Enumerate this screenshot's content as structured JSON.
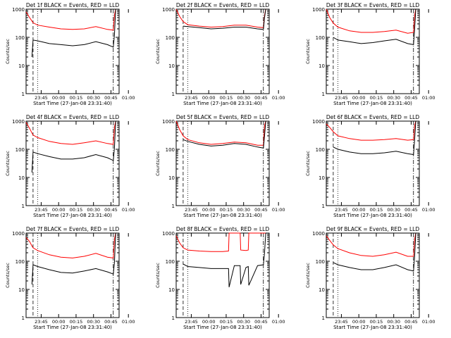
{
  "figure": {
    "xlabel": "Start Time (27-Jan-08 23:31:40)",
    "ylabel": "Counts/sec",
    "colors": {
      "events": "#000000",
      "lld": "#ff0000",
      "axes": "#000000"
    }
  },
  "chart_data": [
    {
      "type": "line",
      "title": "Det 1f BLACK = Events, RED = LLD",
      "xlabel": "Start Time (27-Jan-08 23:31:40)",
      "ylabel": "Counts/sec",
      "yscale": "log",
      "ylim": [
        1,
        1000
      ],
      "yticks": [
        1,
        10,
        100,
        1000
      ],
      "ytick_labels": [
        "1",
        "10",
        "100",
        "1000"
      ],
      "xticks": [
        "23:45",
        "00:00",
        "00:15",
        "00:30",
        "00:45",
        "01:00"
      ],
      "x": [
        0,
        3,
        5,
        6,
        10,
        20,
        30,
        40,
        50,
        60,
        70,
        75,
        76,
        77
      ],
      "series": [
        {
          "name": "LLD",
          "values": [
            800,
            500,
            380,
            330,
            270,
            230,
            200,
            190,
            200,
            240,
            190,
            180,
            600,
            1000
          ]
        },
        {
          "name": "Events",
          "values": [
            null,
            null,
            20,
            80,
            75,
            60,
            55,
            50,
            55,
            70,
            55,
            45,
            120,
            1000
          ]
        }
      ]
    },
    {
      "type": "line",
      "title": "Det 2f BLACK = Events, RED = LLD",
      "xlabel": "Start Time (27-Jan-08 23:31:40)",
      "ylabel": "Counts/sec",
      "yscale": "log",
      "ylim": [
        1,
        1000
      ],
      "yticks": [
        1,
        10,
        100,
        1000
      ],
      "ytick_labels": [
        "1",
        "10",
        "100",
        "1000"
      ],
      "xticks": [
        "23:45",
        "00:00",
        "00:15",
        "00:30",
        "00:45",
        "01:00"
      ],
      "x": [
        0,
        3,
        6,
        10,
        20,
        30,
        40,
        50,
        60,
        70,
        75,
        76,
        77,
        78
      ],
      "series": [
        {
          "name": "LLD",
          "values": [
            1000,
            550,
            360,
            280,
            250,
            230,
            240,
            270,
            270,
            230,
            220,
            600,
            1000,
            1000
          ]
        },
        {
          "name": "Events",
          "values": [
            null,
            null,
            250,
            240,
            220,
            200,
            210,
            230,
            230,
            200,
            190,
            500,
            1000,
            1000
          ]
        }
      ]
    },
    {
      "type": "line",
      "title": "Det 3f BLACK = Events, RED = LLD",
      "xlabel": "Start Time (27-Jan-08 23:31:40)",
      "ylabel": "Counts/sec",
      "yscale": "log",
      "ylim": [
        1,
        1000
      ],
      "yticks": [
        1,
        10,
        100,
        1000
      ],
      "ytick_labels": [
        "1",
        "10",
        "100",
        "1000"
      ],
      "xticks": [
        "23:45",
        "00:00",
        "00:15",
        "00:30",
        "00:45",
        "01:00"
      ],
      "x": [
        0,
        3,
        6,
        10,
        20,
        30,
        40,
        50,
        60,
        70,
        75,
        76,
        77
      ],
      "series": [
        {
          "name": "LLD",
          "values": [
            1000,
            500,
            320,
            230,
            170,
            150,
            150,
            160,
            180,
            140,
            150,
            600,
            1000
          ]
        },
        {
          "name": "Events",
          "values": [
            null,
            null,
            100,
            80,
            70,
            60,
            65,
            75,
            85,
            60,
            55,
            200,
            1000
          ]
        }
      ]
    },
    {
      "type": "line",
      "title": "Det 4f BLACK = Events, RED = LLD",
      "xlabel": "Start Time (27-Jan-08 23:31:40)",
      "ylabel": "Counts/sec",
      "yscale": "log",
      "ylim": [
        1,
        1000
      ],
      "yticks": [
        1,
        10,
        100,
        1000
      ],
      "ytick_labels": [
        "1",
        "10",
        "100",
        "1000"
      ],
      "xticks": [
        "23:45",
        "00:00",
        "00:15",
        "00:30",
        "00:45",
        "01:00"
      ],
      "x": [
        0,
        3,
        5,
        6,
        10,
        20,
        30,
        40,
        50,
        60,
        70,
        75,
        76,
        77
      ],
      "series": [
        {
          "name": "LLD",
          "values": [
            900,
            550,
            380,
            320,
            260,
            190,
            160,
            150,
            170,
            200,
            160,
            150,
            600,
            1000
          ]
        },
        {
          "name": "Events",
          "values": [
            null,
            null,
            15,
            80,
            70,
            55,
            45,
            45,
            50,
            65,
            50,
            40,
            110,
            1000
          ]
        }
      ]
    },
    {
      "type": "line",
      "title": "Det 5f BLACK = Events, RED = LLD",
      "xlabel": "Start Time (27-Jan-08 23:31:40)",
      "ylabel": "Counts/sec",
      "yscale": "log",
      "ylim": [
        1,
        1000
      ],
      "yticks": [
        1,
        10,
        100,
        1000
      ],
      "ytick_labels": [
        "1",
        "10",
        "100",
        "1000"
      ],
      "xticks": [
        "23:45",
        "00:00",
        "00:15",
        "00:30",
        "00:45",
        "01:00"
      ],
      "x": [
        0,
        3,
        6,
        10,
        20,
        30,
        40,
        50,
        60,
        70,
        75,
        76,
        77,
        78
      ],
      "series": [
        {
          "name": "LLD",
          "values": [
            1000,
            500,
            300,
            220,
            170,
            150,
            160,
            180,
            170,
            140,
            140,
            700,
            1000,
            1000
          ]
        },
        {
          "name": "Events",
          "values": [
            null,
            null,
            220,
            190,
            150,
            130,
            140,
            160,
            150,
            120,
            110,
            300,
            1000,
            1000
          ]
        }
      ]
    },
    {
      "type": "line",
      "title": "Det 6f BLACK = Events, RED = LLD",
      "xlabel": "Start Time (27-Jan-08 23:31:40)",
      "ylabel": "Counts/sec",
      "yscale": "log",
      "ylim": [
        1,
        1000
      ],
      "yticks": [
        1,
        10,
        100,
        1000
      ],
      "ytick_labels": [
        "1",
        "10",
        "100",
        "1000"
      ],
      "xticks": [
        "23:45",
        "00:00",
        "00:15",
        "00:30",
        "00:45",
        "01:00"
      ],
      "x": [
        0,
        3,
        6,
        10,
        20,
        30,
        40,
        50,
        60,
        70,
        75,
        76,
        77
      ],
      "series": [
        {
          "name": "LLD",
          "values": [
            800,
            600,
            420,
            300,
            240,
            210,
            210,
            220,
            240,
            210,
            220,
            700,
            1000
          ]
        },
        {
          "name": "Events",
          "values": [
            null,
            null,
            120,
            100,
            80,
            70,
            70,
            75,
            85,
            70,
            65,
            220,
            1000
          ]
        }
      ]
    },
    {
      "type": "line",
      "title": "Det 7f BLACK = Events, RED = LLD",
      "xlabel": "Start Time (27-Jan-08 23:31:40)",
      "ylabel": "Counts/sec",
      "yscale": "log",
      "ylim": [
        1,
        1000
      ],
      "yticks": [
        1,
        10,
        100,
        1000
      ],
      "ytick_labels": [
        "1",
        "10",
        "100",
        "1000"
      ],
      "xticks": [
        "23:45",
        "00:00",
        "00:15",
        "00:30",
        "00:45",
        "01:00"
      ],
      "x": [
        0,
        3,
        5,
        6,
        10,
        20,
        30,
        40,
        50,
        60,
        70,
        75,
        76,
        77
      ],
      "series": [
        {
          "name": "LLD",
          "values": [
            700,
            500,
            350,
            300,
            240,
            170,
            140,
            130,
            150,
            190,
            140,
            130,
            600,
            1000
          ]
        },
        {
          "name": "Events",
          "values": [
            null,
            null,
            15,
            75,
            65,
            50,
            40,
            38,
            45,
            55,
            42,
            35,
            90,
            1000
          ]
        }
      ]
    },
    {
      "type": "line",
      "title": "Det 8f BLACK = Events, RED = LLD",
      "xlabel": "Start Time (27-Jan-08 23:31:40)",
      "ylabel": "Counts/sec",
      "yscale": "log",
      "ylim": [
        1,
        1000
      ],
      "yticks": [
        1,
        10,
        100,
        1000
      ],
      "ytick_labels": [
        "1",
        "10",
        "100",
        "1000"
      ],
      "xticks": [
        "23:45",
        "00:00",
        "00:15",
        "00:30",
        "00:45",
        "01:00"
      ],
      "x": [
        0,
        3,
        6,
        10,
        20,
        30,
        40,
        45,
        45.5,
        50,
        55,
        55.5,
        60,
        62,
        62.5,
        70,
        75,
        76,
        77
      ],
      "series": [
        {
          "name": "LLD",
          "values": [
            800,
            450,
            300,
            250,
            230,
            220,
            220,
            230,
            1000,
            1000,
            1000,
            250,
            240,
            250,
            1000,
            1000,
            1000,
            1000,
            1000
          ]
        },
        {
          "name": "Events",
          "values": [
            null,
            null,
            80,
            65,
            60,
            55,
            55,
            55,
            12,
            70,
            70,
            15,
            60,
            65,
            14,
            70,
            75,
            200,
            1000
          ]
        }
      ]
    },
    {
      "type": "line",
      "title": "Det 9f BLACK = Events, RED = LLD",
      "xlabel": "Start Time (27-Jan-08 23:31:40)",
      "ylabel": "Counts/sec",
      "yscale": "log",
      "ylim": [
        1,
        1000
      ],
      "yticks": [
        1,
        10,
        100,
        1000
      ],
      "ytick_labels": [
        "1",
        "10",
        "100",
        "1000"
      ],
      "xticks": [
        "23:45",
        "00:00",
        "00:15",
        "00:30",
        "00:45",
        "01:00"
      ],
      "x": [
        0,
        3,
        6,
        10,
        20,
        30,
        40,
        50,
        60,
        70,
        75,
        76,
        77
      ],
      "series": [
        {
          "name": "LLD",
          "values": [
            800,
            550,
            380,
            280,
            200,
            160,
            150,
            170,
            210,
            150,
            150,
            600,
            1000
          ]
        },
        {
          "name": "Events",
          "values": [
            null,
            null,
            90,
            75,
            60,
            50,
            50,
            60,
            75,
            50,
            45,
            150,
            1000
          ]
        }
      ]
    }
  ]
}
